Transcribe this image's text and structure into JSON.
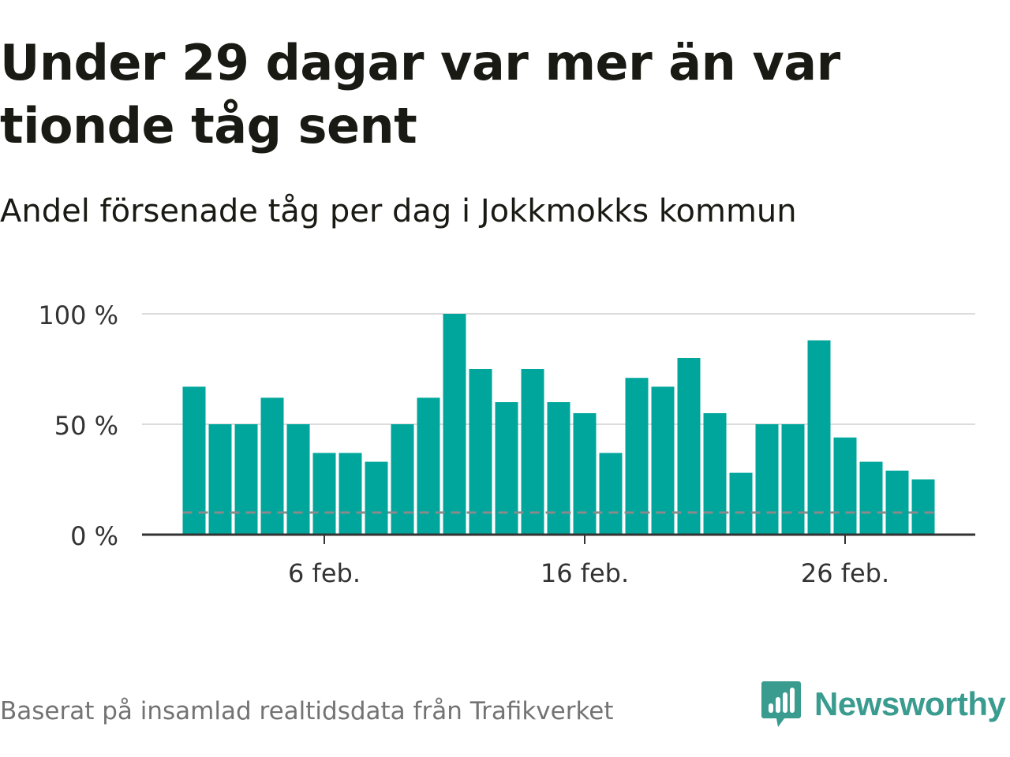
{
  "title": "Under 29 dagar var mer än var tionde tåg sent",
  "subtitle": "Andel försenade tåg per dag i Jokkmokks kommun",
  "source": "Baserat på insamlad realtidsdata från Trafikverket",
  "brand": {
    "name": "Newsworthy",
    "color": "#3a9b8f"
  },
  "colors": {
    "bar": "#00a69c",
    "reference_line": "#8a8a8a",
    "grid": "#dcdcdc",
    "axis": "#333333"
  },
  "chart_data": {
    "type": "bar",
    "x": [
      "2024-02-01",
      "2024-02-02",
      "2024-02-03",
      "2024-02-04",
      "2024-02-05",
      "2024-02-06",
      "2024-02-07",
      "2024-02-08",
      "2024-02-09",
      "2024-02-10",
      "2024-02-11",
      "2024-02-12",
      "2024-02-13",
      "2024-02-14",
      "2024-02-15",
      "2024-02-16",
      "2024-02-17",
      "2024-02-18",
      "2024-02-19",
      "2024-02-20",
      "2024-02-21",
      "2024-02-22",
      "2024-02-23",
      "2024-02-24",
      "2024-02-25",
      "2024-02-26",
      "2024-02-27",
      "2024-02-28",
      "2024-02-29"
    ],
    "values": [
      67,
      50,
      50,
      62,
      50,
      37,
      37,
      33,
      50,
      62,
      100,
      75,
      60,
      75,
      60,
      55,
      37,
      71,
      67,
      80,
      55,
      28,
      50,
      50,
      88,
      44,
      33,
      29,
      25
    ],
    "ylim": [
      0,
      100
    ],
    "yticks": [
      {
        "value": 0,
        "label": "0 %"
      },
      {
        "value": 50,
        "label": "50 %"
      },
      {
        "value": 100,
        "label": "100 %"
      }
    ],
    "xticks": [
      {
        "value": "2024-02-06",
        "label": "6 feb."
      },
      {
        "value": "2024-02-16",
        "label": "16 feb."
      },
      {
        "value": "2024-02-26",
        "label": "26 feb."
      }
    ],
    "reference_line": {
      "value": 10,
      "style": "dashed"
    },
    "grid": true
  }
}
